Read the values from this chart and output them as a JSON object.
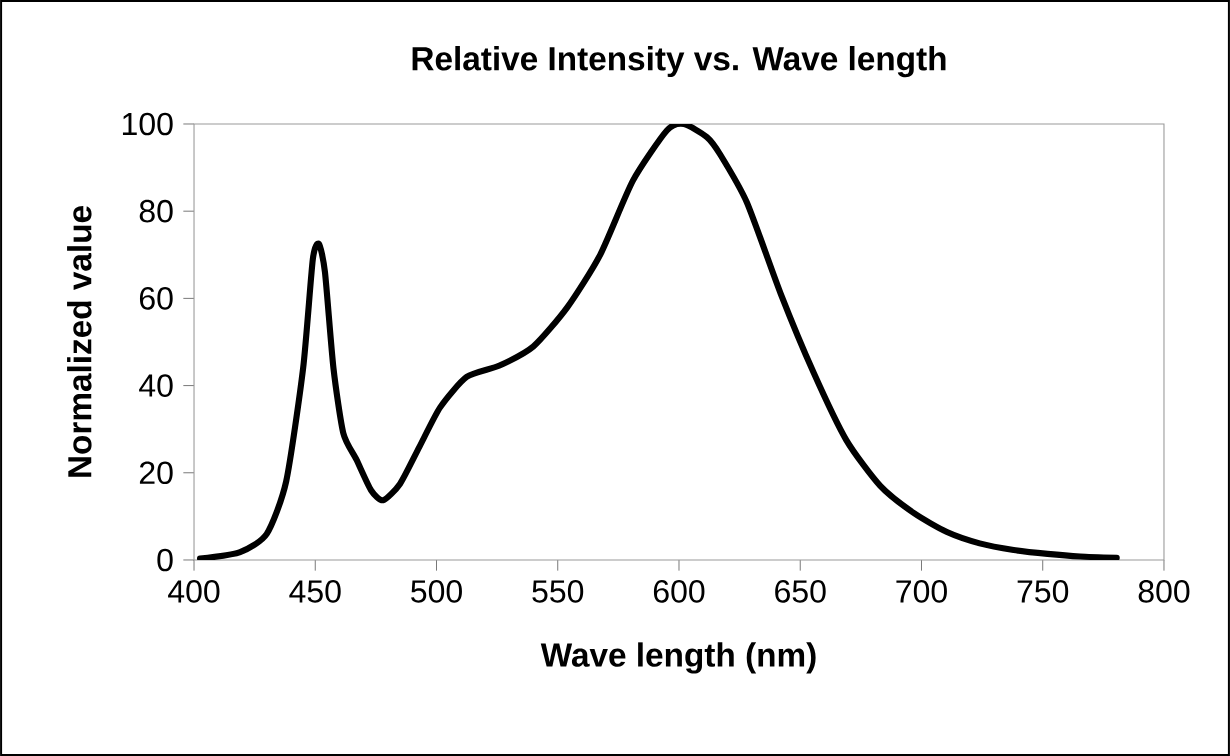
{
  "chart_data": {
    "type": "line",
    "title": "Relative Intensity vs. Wave length",
    "xlabel": "Wave length (nm)",
    "ylabel": "Normalized value",
    "xlim": [
      400,
      800
    ],
    "xticks": [
      400,
      450,
      500,
      550,
      600,
      650,
      700,
      750,
      800
    ],
    "ylim": [
      0,
      100
    ],
    "yticks": [
      0,
      20,
      40,
      60,
      80,
      100
    ],
    "grid": false,
    "marker": "none",
    "line_style": "solid",
    "series": [
      {
        "color": "#000000",
        "x": [
          402.5,
          419,
          430,
          438,
          445,
          449,
          451.5,
          454,
          457.5,
          461.6,
          467,
          473,
          478,
          485,
          493,
          501.5,
          512.5,
          526,
          540,
          554,
          567.5,
          581,
          595,
          602,
          611.5,
          617,
          628,
          642,
          655.5,
          669,
          683,
          697,
          710.5,
          724,
          738,
          752,
          765.5,
          780.5
        ],
        "values": [
          0.3,
          1.8,
          6,
          18,
          44,
          69,
          72.5,
          66,
          44,
          29,
          23,
          16,
          13.7,
          17.5,
          26,
          35,
          42,
          44.6,
          49,
          58,
          70,
          87,
          98.5,
          100,
          97,
          93,
          82,
          61,
          43,
          27.5,
          17,
          10.7,
          6.4,
          3.8,
          2.3,
          1.4,
          0.8,
          0.5
        ]
      }
    ]
  }
}
